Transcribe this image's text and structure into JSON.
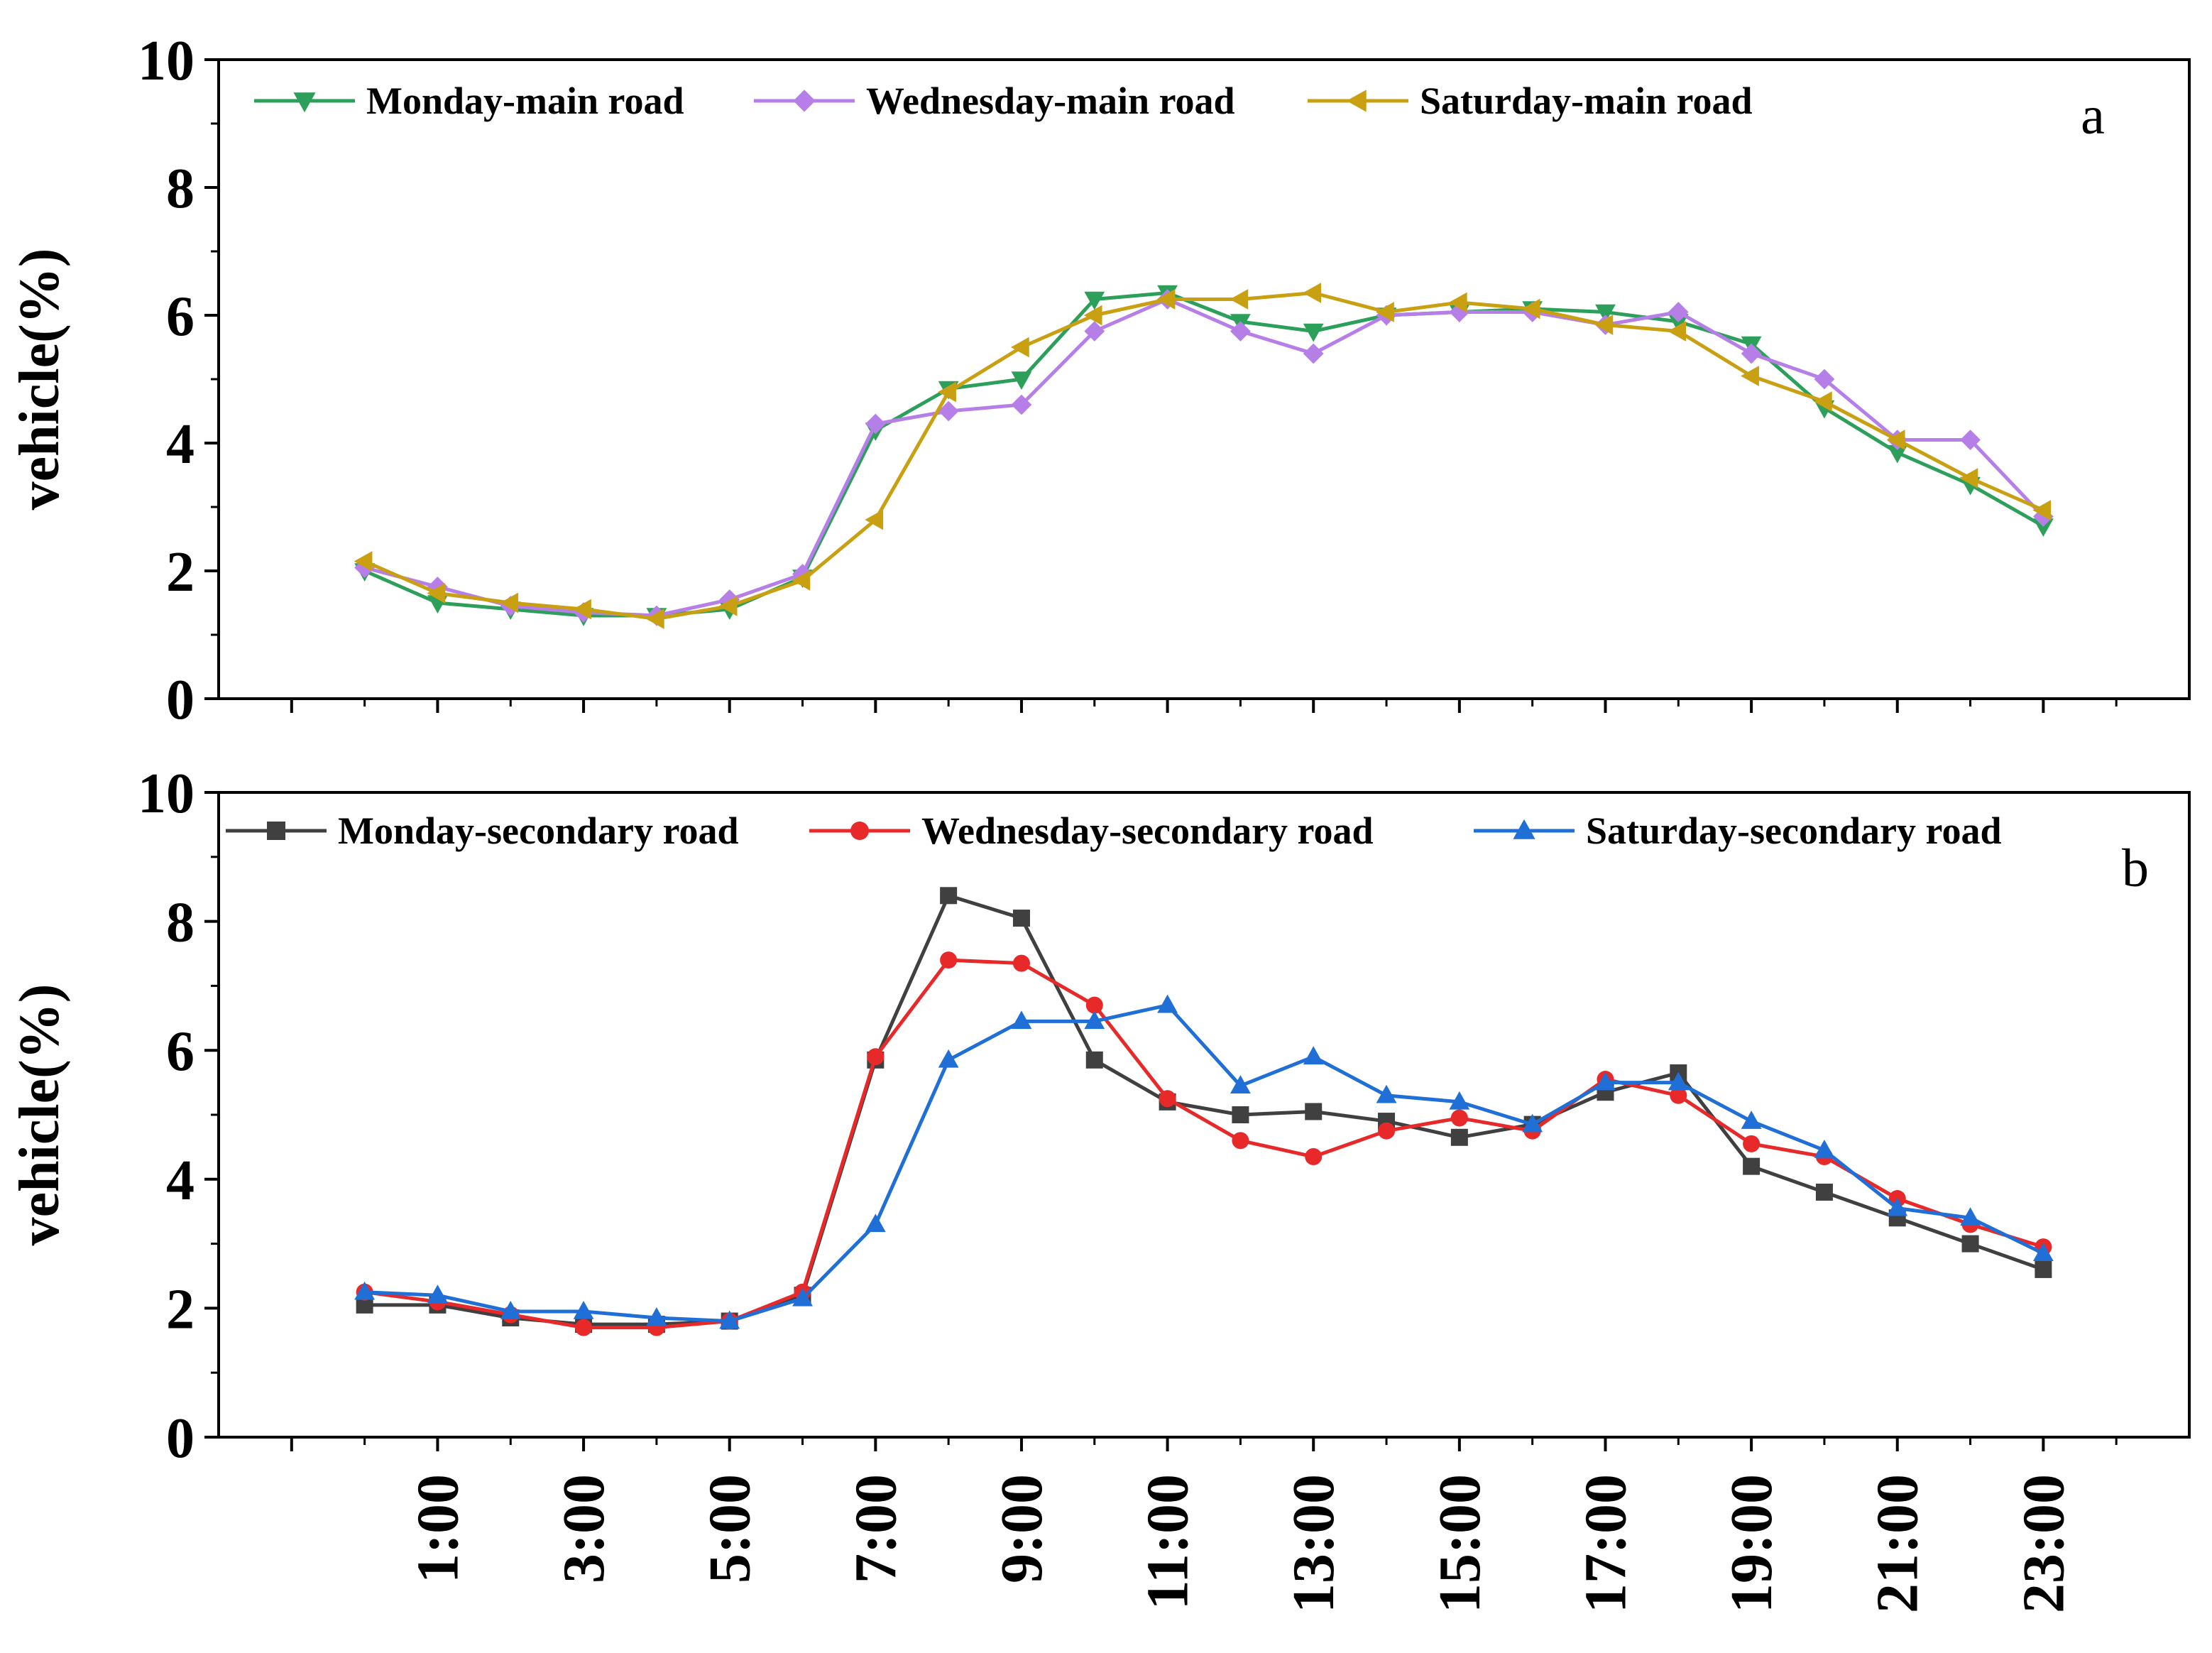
{
  "figure": {
    "x_tick_labels": [
      "1:00",
      "3:00",
      "5:00",
      "7:00",
      "9:00",
      "11:00",
      "13:00",
      "15:00",
      "17:00",
      "19:00",
      "21:00",
      "23:00"
    ]
  },
  "chart_data": [
    {
      "type": "line",
      "panel_label": "a",
      "title": "",
      "xlabel": "",
      "ylabel": "vehicle(%)",
      "ylim": [
        0,
        10
      ],
      "y_ticks": [
        0,
        2,
        4,
        6,
        8,
        10
      ],
      "xlim": [
        -2,
        25
      ],
      "x": [
        0,
        1,
        2,
        3,
        4,
        5,
        6,
        7,
        8,
        9,
        10,
        11,
        12,
        13,
        14,
        15,
        16,
        17,
        18,
        19,
        20,
        21,
        22,
        23
      ],
      "legend_position": "top-left",
      "series": [
        {
          "name": "Monday-main road",
          "color": "#2ca05a",
          "marker": "triangle-down",
          "values": [
            2.0,
            1.5,
            1.4,
            1.3,
            1.3,
            1.4,
            1.9,
            4.2,
            4.85,
            5.0,
            6.25,
            6.35,
            5.9,
            5.75,
            6.0,
            6.05,
            6.1,
            6.05,
            5.9,
            5.55,
            4.55,
            3.85,
            3.35,
            2.7
          ]
        },
        {
          "name": "Wednesday-main road",
          "color": "#b67fe8",
          "marker": "diamond",
          "values": [
            2.05,
            1.75,
            1.45,
            1.35,
            1.3,
            1.55,
            1.95,
            4.3,
            4.5,
            4.6,
            5.75,
            6.25,
            5.75,
            5.4,
            6.0,
            6.05,
            6.05,
            5.85,
            6.05,
            5.4,
            5.0,
            4.05,
            4.05,
            2.85
          ]
        },
        {
          "name": "Saturday-main road",
          "color": "#c9a012",
          "marker": "triangle-left",
          "values": [
            2.15,
            1.65,
            1.5,
            1.4,
            1.25,
            1.45,
            1.85,
            2.8,
            4.8,
            5.5,
            6.0,
            6.25,
            6.25,
            6.35,
            6.05,
            6.2,
            6.1,
            5.85,
            5.75,
            5.05,
            4.65,
            4.05,
            3.45,
            2.95
          ]
        }
      ]
    },
    {
      "type": "line",
      "panel_label": "b",
      "title": "",
      "xlabel": "",
      "ylabel": "vehicle(%)",
      "ylim": [
        0,
        10
      ],
      "y_ticks": [
        0,
        2,
        4,
        6,
        8,
        10
      ],
      "xlim": [
        -2,
        25
      ],
      "x": [
        0,
        1,
        2,
        3,
        4,
        5,
        6,
        7,
        8,
        9,
        10,
        11,
        12,
        13,
        14,
        15,
        16,
        17,
        18,
        19,
        20,
        21,
        22,
        23
      ],
      "legend_position": "top-left",
      "series": [
        {
          "name": "Monday-secondary road",
          "color": "#404040",
          "marker": "square",
          "values": [
            2.05,
            2.05,
            1.85,
            1.75,
            1.75,
            1.8,
            2.2,
            5.85,
            8.4,
            8.05,
            5.85,
            5.2,
            5.0,
            5.05,
            4.9,
            4.65,
            4.85,
            5.35,
            5.65,
            4.2,
            3.8,
            3.4,
            3.0,
            2.6
          ]
        },
        {
          "name": "Wednesday-secondary road",
          "color": "#e8292a",
          "marker": "circle",
          "values": [
            2.25,
            2.1,
            1.9,
            1.7,
            1.7,
            1.8,
            2.25,
            5.9,
            7.4,
            7.35,
            6.7,
            5.25,
            4.6,
            4.35,
            4.75,
            4.95,
            4.75,
            5.55,
            5.3,
            4.55,
            4.35,
            3.7,
            3.3,
            2.95
          ]
        },
        {
          "name": "Saturday-secondary road",
          "color": "#1f6fd6",
          "marker": "triangle-up",
          "values": [
            2.25,
            2.2,
            1.95,
            1.95,
            1.85,
            1.8,
            2.15,
            3.3,
            5.85,
            6.45,
            6.45,
            6.7,
            5.45,
            5.9,
            5.3,
            5.2,
            4.85,
            5.5,
            5.5,
            4.9,
            4.45,
            3.55,
            3.4,
            2.85
          ]
        }
      ]
    }
  ]
}
